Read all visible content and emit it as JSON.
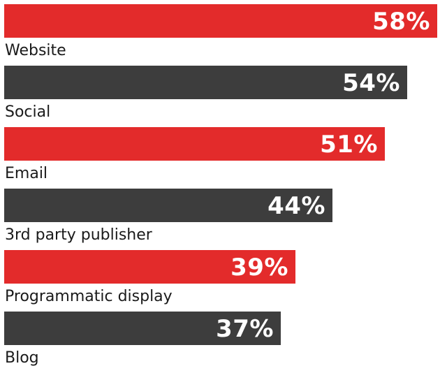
{
  "chart_data": {
    "type": "bar",
    "orientation": "horizontal",
    "categories": [
      "Website",
      "Social",
      "Email",
      "3rd party publisher",
      "Programmatic display",
      "Blog"
    ],
    "values": [
      58,
      54,
      51,
      44,
      39,
      37
    ],
    "value_labels": [
      "58%",
      "54%",
      "51%",
      "44%",
      "39%",
      "37%"
    ],
    "unit": "%",
    "title": "",
    "xlabel": "",
    "ylabel": "",
    "xlim": [
      0,
      58
    ],
    "grid": false,
    "legend": "none",
    "colors": [
      "#e32b2b",
      "#3d3d3d",
      "#e32b2b",
      "#3d3d3d",
      "#e32b2b",
      "#3d3d3d"
    ]
  }
}
